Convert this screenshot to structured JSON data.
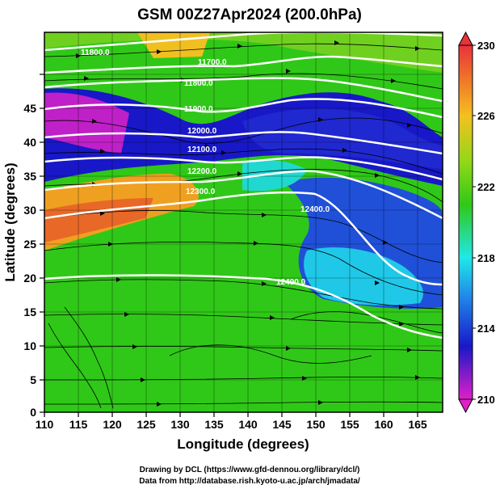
{
  "title": "GSM 00Z27Apr2024 (200.0hPa)",
  "axes": {
    "x_title": "Longitude (degrees)",
    "y_title": "Latitude  (degrees)",
    "x_ticks": [
      "110",
      "115",
      "120",
      "125",
      "130",
      "135",
      "140",
      "145",
      "150",
      "155",
      "160",
      "165"
    ],
    "y_ticks": [
      "0",
      "5",
      "10",
      "15",
      "20",
      "25",
      "30",
      "35",
      "40",
      "45"
    ]
  },
  "colorbar": {
    "labels": [
      "230",
      "226",
      "222",
      "218",
      "214",
      "210"
    ],
    "colors": {
      "high": "#e8333a",
      "orange": "#f5a020",
      "green": "#30c818",
      "cyan": "#20e8e8",
      "blue": "#1818c8",
      "magenta": "#e020c8"
    }
  },
  "contour_labels": [
    "11800.0",
    "11700.0",
    "11800.0",
    "11900.0",
    "12000.0",
    "12100.0",
    "12200.0",
    "12300.0",
    "12400.0",
    "12400.0"
  ],
  "credits": {
    "line1": "Drawing by DCL (https://www.gfd-dennou.org/library/dcl/)",
    "line2": "Data from http://database.rish.kyoto-u.ac.jp/arch/jmadata/"
  }
}
